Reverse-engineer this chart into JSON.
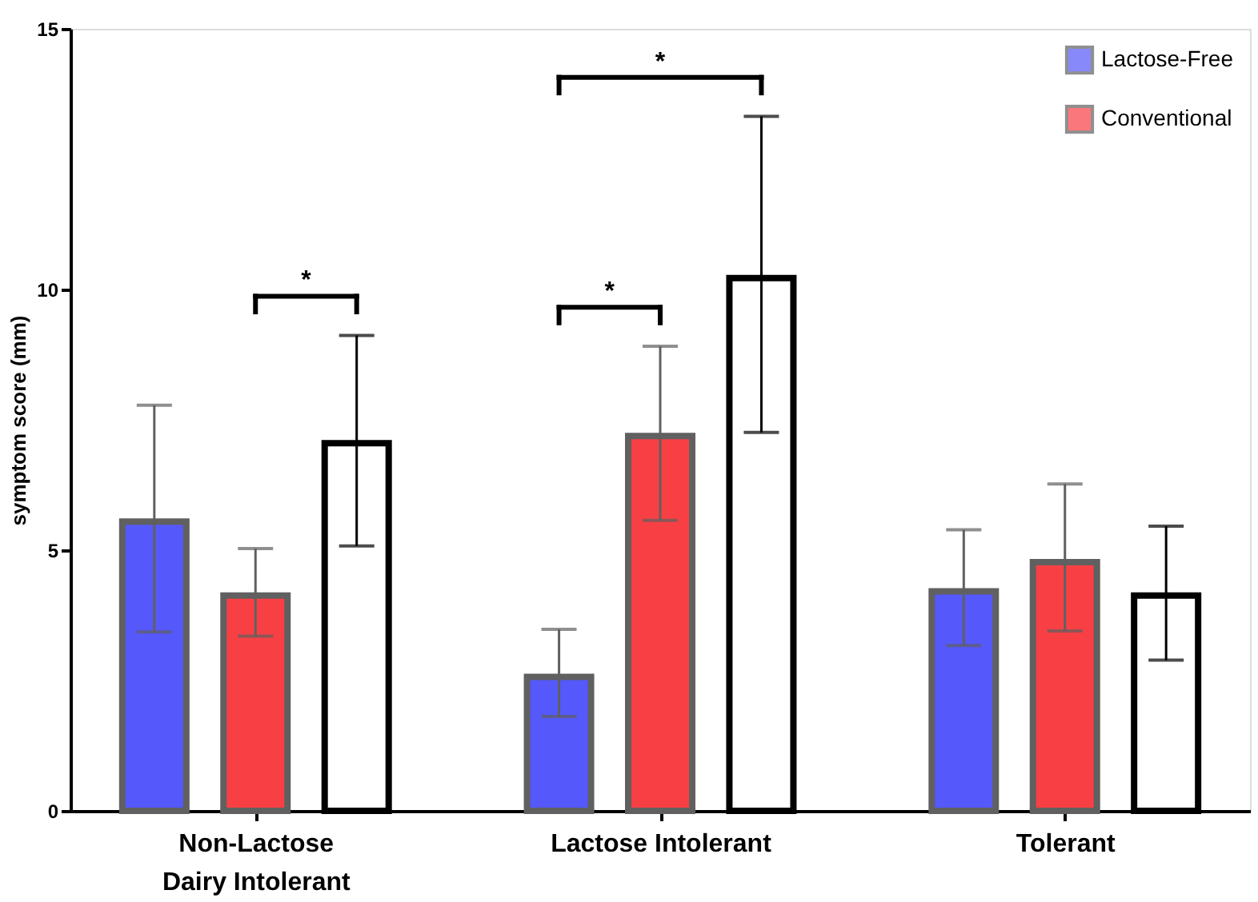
{
  "chart_data": {
    "type": "bar",
    "ylabel": "symptom score (mm)",
    "categories": [
      "Non-Lactose\nDairy Intolerant",
      "Lactose Intolerant",
      "Tolerant"
    ],
    "series": [
      {
        "name": "Lactose-Free",
        "color": "#5558fa",
        "values": [
          5.55,
          2.57,
          4.21
        ],
        "errors": [
          [
            3.43,
            7.78
          ],
          [
            1.81,
            3.48
          ],
          [
            3.17,
            5.39
          ]
        ]
      },
      {
        "name": "Conventional",
        "color": "#f84044",
        "values": [
          4.13,
          7.19,
          4.77
        ],
        "errors": [
          [
            3.35,
            5.03
          ],
          [
            5.57,
            8.91
          ],
          [
            3.45,
            6.27
          ]
        ]
      },
      {
        "color": "#ffffff",
        "values": [
          7.05,
          10.22,
          4.13
        ],
        "errors": [
          [
            5.08,
            9.12
          ],
          [
            7.26,
            13.32
          ],
          [
            2.89,
            5.46
          ]
        ]
      }
    ],
    "ylim": [
      0,
      15
    ],
    "yticks": [
      0,
      5,
      10,
      15
    ],
    "grid": false,
    "legend": "top right",
    "annotations": [
      "*",
      "*",
      "*"
    ]
  }
}
